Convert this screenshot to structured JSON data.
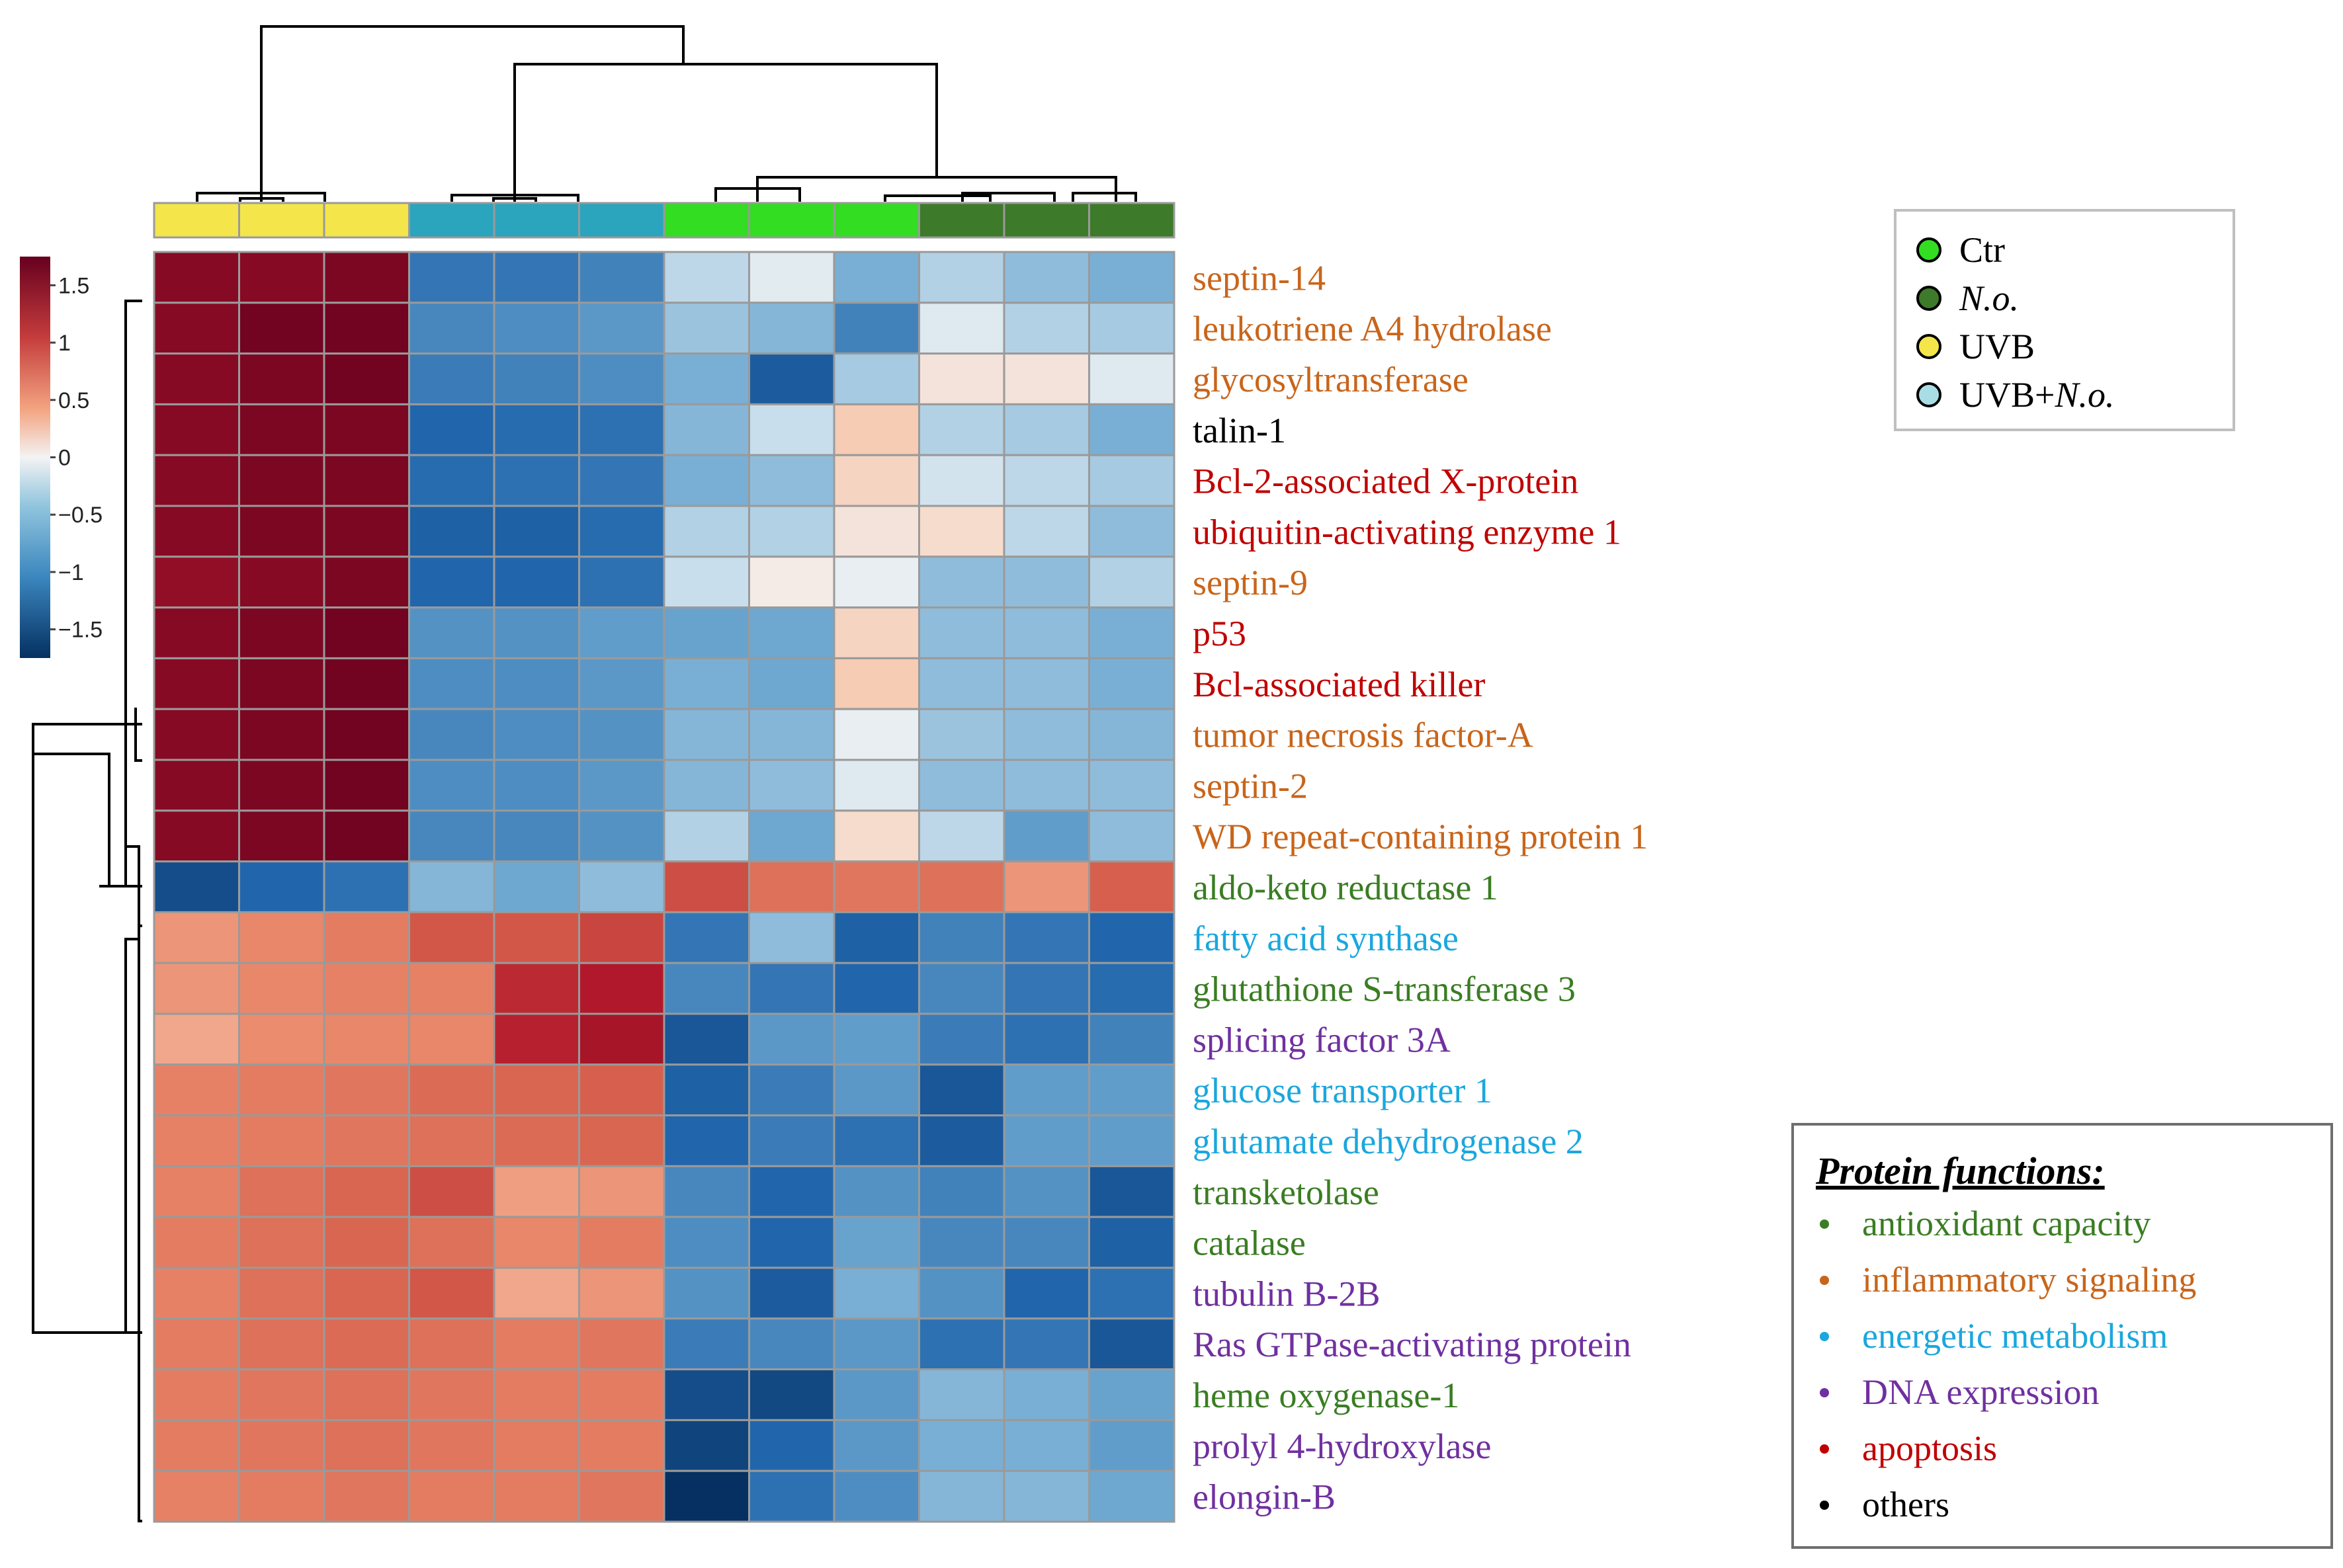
{
  "chart_data": {
    "type": "heatmap",
    "title": "",
    "columns": [
      "UVB",
      "UVB",
      "UVB",
      "UVB+N.o.",
      "UVB+N.o.",
      "UVB+N.o.",
      "Ctr",
      "Ctr",
      "Ctr",
      "N.o.",
      "N.o.",
      "N.o."
    ],
    "column_groups": [
      {
        "name": "UVB",
        "color": "#f4e64a",
        "count": 3
      },
      {
        "name": "UVB+N.o.",
        "color": "#2ba4bd",
        "count": 3
      },
      {
        "name": "Ctr",
        "color": "#33dd22",
        "count": 3
      },
      {
        "name": "N.o.",
        "color": "#3d7a2a",
        "count": 3
      }
    ],
    "rows": [
      {
        "label": "septin-14",
        "function": "inflammatory signaling",
        "values": [
          1.6,
          1.6,
          1.65,
          -1.05,
          -1.05,
          -0.95,
          -0.25,
          -0.08,
          -0.55,
          -0.3,
          -0.45,
          -0.55
        ]
      },
      {
        "label": "leukotriene A4 hydrolase",
        "function": "inflammatory signaling",
        "values": [
          1.6,
          1.7,
          1.7,
          -0.9,
          -0.85,
          -0.75,
          -0.4,
          -0.5,
          -0.95,
          -0.1,
          -0.3,
          -0.35
        ]
      },
      {
        "label": "glycosyltransferase",
        "function": "inflammatory signaling",
        "values": [
          1.6,
          1.65,
          1.7,
          -1.0,
          -0.95,
          -0.85,
          -0.55,
          -1.3,
          -0.35,
          0.1,
          0.1,
          -0.1
        ]
      },
      {
        "label": "talin-1",
        "function": "others",
        "values": [
          1.6,
          1.65,
          1.65,
          -1.2,
          -1.15,
          -1.1,
          -0.5,
          -0.2,
          0.25,
          -0.3,
          -0.35,
          -0.55
        ]
      },
      {
        "label": "Bcl-2-associated X-protein",
        "function": "apoptosis",
        "values": [
          1.6,
          1.65,
          1.65,
          -1.15,
          -1.1,
          -1.05,
          -0.55,
          -0.45,
          0.2,
          -0.15,
          -0.25,
          -0.35
        ]
      },
      {
        "label": "ubiquitin-activating enzyme 1",
        "function": "apoptosis",
        "values": [
          1.6,
          1.65,
          1.65,
          -1.25,
          -1.25,
          -1.15,
          -0.3,
          -0.3,
          0.1,
          0.15,
          -0.25,
          -0.45
        ]
      },
      {
        "label": "septin-9",
        "function": "inflammatory signaling",
        "values": [
          1.55,
          1.6,
          1.65,
          -1.2,
          -1.2,
          -1.1,
          -0.2,
          0.05,
          -0.05,
          -0.45,
          -0.45,
          -0.3
        ]
      },
      {
        "label": "p53",
        "function": "apoptosis",
        "values": [
          1.6,
          1.65,
          1.7,
          -0.8,
          -0.8,
          -0.7,
          -0.65,
          -0.6,
          0.2,
          -0.45,
          -0.45,
          -0.55
        ]
      },
      {
        "label": "Bcl-associated killer",
        "function": "apoptosis",
        "values": [
          1.6,
          1.65,
          1.7,
          -0.85,
          -0.85,
          -0.75,
          -0.55,
          -0.6,
          0.25,
          -0.45,
          -0.45,
          -0.55
        ]
      },
      {
        "label": "tumor necrosis factor-A",
        "function": "inflammatory signaling",
        "values": [
          1.6,
          1.65,
          1.7,
          -0.9,
          -0.85,
          -0.8,
          -0.5,
          -0.5,
          -0.05,
          -0.4,
          -0.45,
          -0.5
        ]
      },
      {
        "label": "septin-2",
        "function": "inflammatory signaling",
        "values": [
          1.6,
          1.65,
          1.7,
          -0.85,
          -0.85,
          -0.75,
          -0.5,
          -0.45,
          -0.1,
          -0.45,
          -0.45,
          -0.45
        ]
      },
      {
        "label": "WD repeat-containing protein 1",
        "function": "inflammatory signaling",
        "values": [
          1.6,
          1.65,
          1.7,
          -0.9,
          -0.9,
          -0.8,
          -0.3,
          -0.6,
          0.15,
          -0.25,
          -0.7,
          -0.45
        ]
      },
      {
        "label": "aldo-keto reductase 1",
        "function": "antioxidant capacity",
        "values": [
          -1.45,
          -1.2,
          -1.1,
          -0.5,
          -0.6,
          -0.45,
          1.1,
          0.85,
          0.8,
          0.85,
          0.55,
          1.0
        ]
      },
      {
        "label": "fatty acid synthase",
        "function": "energetic metabolism",
        "values": [
          0.55,
          0.65,
          0.75,
          1.05,
          1.05,
          1.15,
          -1.05,
          -0.45,
          -1.25,
          -0.95,
          -1.05,
          -1.2
        ]
      },
      {
        "label": "glutathione S-transferase 3",
        "function": "antioxidant capacity",
        "values": [
          0.55,
          0.65,
          0.7,
          0.7,
          1.3,
          1.4,
          -0.9,
          -1.05,
          -1.2,
          -0.9,
          -1.05,
          -1.15
        ]
      },
      {
        "label": "splicing factor 3A",
        "function": "DNA expression",
        "values": [
          0.45,
          0.6,
          0.65,
          0.65,
          1.35,
          1.45,
          -1.35,
          -0.75,
          -0.7,
          -1.0,
          -1.1,
          -0.95
        ]
      },
      {
        "label": "glucose transporter 1",
        "function": "energetic metabolism",
        "values": [
          0.7,
          0.75,
          0.8,
          0.9,
          0.95,
          1.0,
          -1.25,
          -1.0,
          -0.75,
          -1.35,
          -0.7,
          -0.7
        ]
      },
      {
        "label": "glutamate dehydrogenase 2",
        "function": "energetic metabolism",
        "values": [
          0.7,
          0.75,
          0.8,
          0.85,
          0.9,
          0.95,
          -1.2,
          -1.0,
          -1.1,
          -1.3,
          -0.7,
          -0.7
        ]
      },
      {
        "label": "transketolase",
        "function": "antioxidant capacity",
        "values": [
          0.7,
          0.85,
          0.95,
          1.1,
          0.5,
          0.55,
          -0.9,
          -1.2,
          -0.8,
          -0.95,
          -0.8,
          -1.35
        ]
      },
      {
        "label": "catalase",
        "function": "antioxidant capacity",
        "values": [
          0.75,
          0.85,
          0.95,
          0.85,
          0.65,
          0.75,
          -0.85,
          -1.2,
          -0.65,
          -0.9,
          -0.9,
          -1.25
        ]
      },
      {
        "label": "tubulin B-2B",
        "function": "DNA expression",
        "values": [
          0.7,
          0.85,
          0.95,
          1.05,
          0.45,
          0.55,
          -0.8,
          -1.3,
          -0.55,
          -0.8,
          -1.2,
          -1.1
        ]
      },
      {
        "label": "Ras GTPase-activating protein",
        "function": "DNA expression",
        "values": [
          0.75,
          0.85,
          0.9,
          0.85,
          0.75,
          0.8,
          -1.0,
          -0.9,
          -0.75,
          -1.1,
          -1.05,
          -1.35
        ]
      },
      {
        "label": "heme oxygenase-1",
        "function": "antioxidant capacity",
        "values": [
          0.75,
          0.8,
          0.85,
          0.8,
          0.75,
          0.75,
          -1.45,
          -1.5,
          -0.75,
          -0.5,
          -0.55,
          -0.65
        ]
      },
      {
        "label": "prolyl 4-hydroxylase",
        "function": "DNA expression",
        "values": [
          0.75,
          0.8,
          0.85,
          0.8,
          0.75,
          0.75,
          -1.55,
          -1.2,
          -0.75,
          -0.55,
          -0.55,
          -0.7
        ]
      },
      {
        "label": "elongin-B",
        "function": "DNA expression",
        "values": [
          0.7,
          0.75,
          0.8,
          0.75,
          0.75,
          0.8,
          -1.75,
          -1.1,
          -0.85,
          -0.5,
          -0.5,
          -0.6
        ]
      }
    ],
    "color_scale": {
      "ticks": [
        "1.5",
        "1",
        "0.5",
        "0",
        "−0.5",
        "−1",
        "−1.5"
      ],
      "range": [
        -1.75,
        1.75
      ],
      "low": "#053061",
      "mid": "#f3f3f3",
      "high": "#67001f"
    },
    "group_legend": [
      {
        "name": "Ctr",
        "italic_part": "",
        "color": "#33dd22"
      },
      {
        "name": "",
        "italic_part": "N.o.",
        "color": "#3d7a2a"
      },
      {
        "name": "UVB",
        "italic_part": "",
        "color": "#f4e64a"
      },
      {
        "name": "UVB+",
        "italic_part": "N.o.",
        "color": "#a9dde6"
      }
    ],
    "function_legend": {
      "title": "Protein functions:",
      "items": [
        {
          "name": "antioxidant capacity",
          "color": "#3a7d23"
        },
        {
          "name": "inflammatory signaling",
          "color": "#c8651b"
        },
        {
          "name": "energetic metabolism",
          "color": "#1aa7dd"
        },
        {
          "name": "DNA expression",
          "color": "#7030a0"
        },
        {
          "name": "apoptosis",
          "color": "#c00000"
        },
        {
          "name": "others",
          "color": "#000000"
        }
      ]
    }
  }
}
